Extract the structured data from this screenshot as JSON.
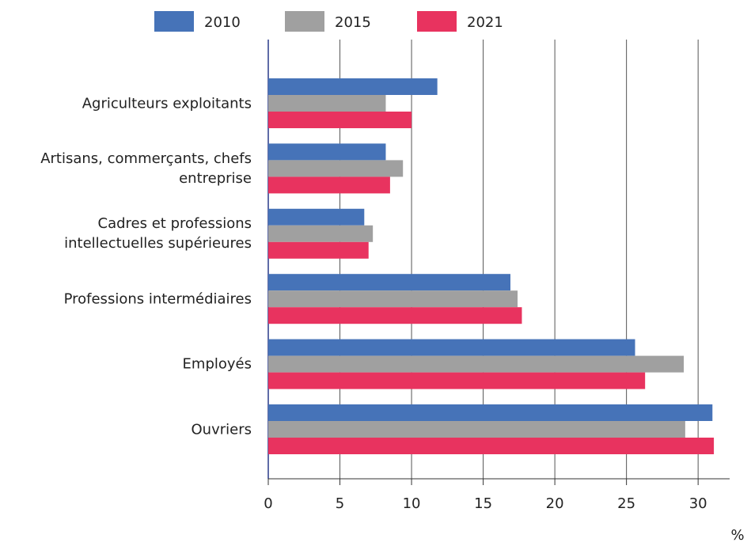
{
  "chart_data": {
    "type": "barh",
    "categories": [
      "Agriculteurs exploitants",
      "Artisans, commerçants, chefs\nentreprise",
      "Cadres et professions\nintellectuelles supérieures",
      "Professions intermédiaires",
      "Employés",
      "Ouvriers"
    ],
    "series": [
      {
        "name": "2010",
        "color": "#4673b8",
        "values": [
          11.8,
          8.2,
          6.7,
          16.9,
          25.6,
          31.0
        ]
      },
      {
        "name": "2015",
        "color": "#a0a0a0",
        "values": [
          8.2,
          9.4,
          7.3,
          17.4,
          29.0,
          29.1
        ]
      },
      {
        "name": "2021",
        "color": "#e8335f",
        "values": [
          10.0,
          8.5,
          7.0,
          17.7,
          26.3,
          31.1
        ]
      }
    ],
    "xlabel": "%",
    "xlim": [
      0,
      32.2
    ],
    "xticks": [
      0,
      5,
      10,
      15,
      20,
      25,
      30
    ],
    "grid": true
  }
}
